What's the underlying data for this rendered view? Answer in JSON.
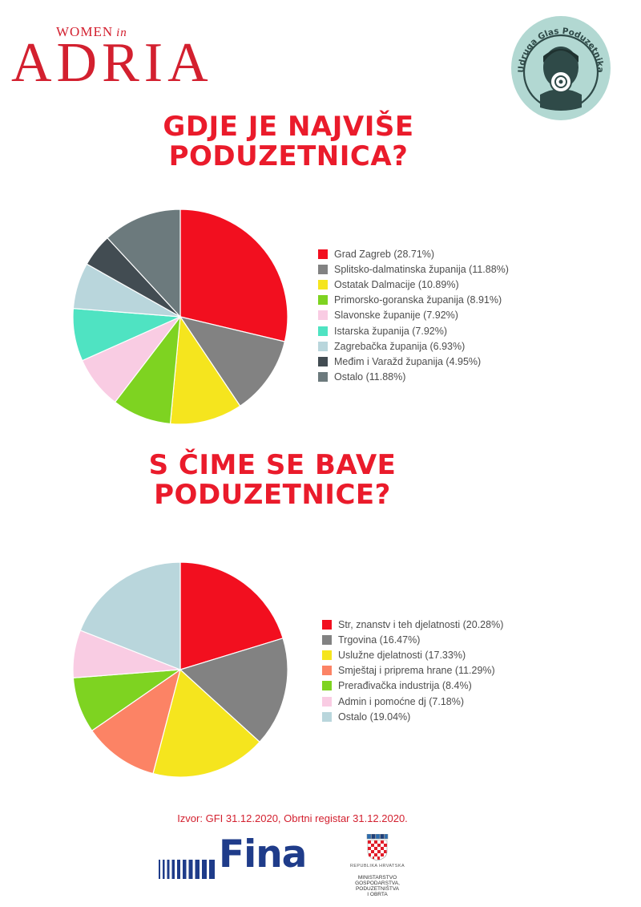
{
  "brand": {
    "women": "WOMEN",
    "in": "in",
    "adria": "ADRIA"
  },
  "badge": {
    "text": "Udruga Glas Poduzetnika",
    "bg": "#b2d8d2",
    "ring": "#2f4a48"
  },
  "chart_data": [
    {
      "type": "pie",
      "title": "GDJE JE NAJVIŠE PODUZETNICA?",
      "categories": [
        "Grad Zagreb",
        "Splitsko-dalmatinska županija",
        "Ostatak Dalmacije",
        "Primorsko-goranska županija",
        "Slavonske županije",
        "Istarska županija",
        "Zagrebačka županija",
        "Međim i Varažd županija",
        "Ostalo"
      ],
      "legend_labels": [
        "Grad Zagreb (28.71%)",
        "Splitsko-dalmatinska županija (11.88%)",
        "Ostatak Dalmacije (10.89%)",
        "Primorsko-goranska županija (8.91%)",
        "Slavonske županije (7.92%)",
        "Istarska županija (7.92%)",
        "Zagrebačka županija (6.93%)",
        "Međim i Varažd županija (4.95%)",
        "Ostalo (11.88%)"
      ],
      "values": [
        28.71,
        11.88,
        10.89,
        8.91,
        7.92,
        7.92,
        6.93,
        4.95,
        11.88
      ],
      "colors": [
        "#f20f1f",
        "#828282",
        "#f5e51e",
        "#7ed321",
        "#f9cce3",
        "#4fe3c2",
        "#b9d6dc",
        "#424c52",
        "#6c7a7d"
      ],
      "legend_position": "right"
    },
    {
      "type": "pie",
      "title": "S ČIME SE BAVE PODUZETNICE?",
      "categories": [
        "Str, znanstv i teh djelatnosti",
        "Trgovina",
        "Uslužne djelatnosti",
        "Smještaj i priprema hrane",
        "Prerađivačka industrija",
        "Admin i pomoćne dj",
        "Ostalo"
      ],
      "legend_labels": [
        "Str, znanstv i teh djelatnosti (20.28%)",
        "Trgovina (16.47%)",
        "Uslužne djelatnosti (17.33%)",
        "Smještaj i priprema hrane (11.29%)",
        "Prerađivačka industrija (8.4%)",
        "Admin i pomoćne dj (7.18%)",
        "Ostalo (19.04%)"
      ],
      "values": [
        20.28,
        16.47,
        17.33,
        11.29,
        8.4,
        7.18,
        19.04
      ],
      "colors": [
        "#f20f1f",
        "#828282",
        "#f5e51e",
        "#fc8365",
        "#7ed321",
        "#f9cce3",
        "#b9d6dc"
      ],
      "legend_position": "right"
    }
  ],
  "source": "Izvor: GFI 31.12.2020, Obrtni registar 31.12.2020.",
  "fina": {
    "text": "Fina",
    "color": "#1f3c8a"
  },
  "ministry": {
    "republic": "REPUBLIKA HRVATSKA",
    "name": [
      "MINISTARSTVO",
      "GOSPODARSTVA,",
      "PODUZETNIŠTVA",
      "I OBRTA"
    ]
  }
}
